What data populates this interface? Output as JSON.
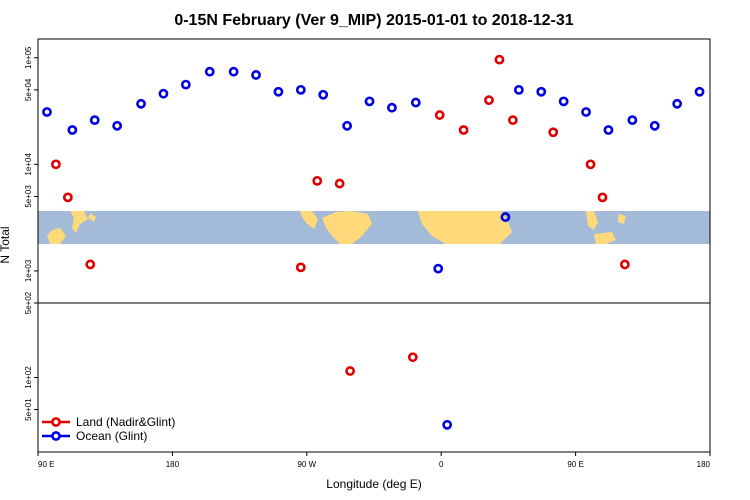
{
  "chart_data": {
    "type": "scatter",
    "title": "0-15N February (Ver 9_MIP)   2015-01-01 to 2018-12-31",
    "xlabel": "Longitude (deg E)",
    "ylabel": "N Total",
    "x_axis": {
      "range_deg_east": [
        90,
        540
      ],
      "ticks": [
        {
          "value": 90,
          "label": "90 E"
        },
        {
          "value": 180,
          "label": "180"
        },
        {
          "value": 270,
          "label": "90 W"
        },
        {
          "value": 360,
          "label": "0"
        },
        {
          "value": 450,
          "label": "90 E"
        },
        {
          "value": 540,
          "label": "180"
        }
      ]
    },
    "y_axis": {
      "scale": "log",
      "range": [
        20,
        150000
      ],
      "ticks": [
        {
          "value": 50,
          "label": "5e+01"
        },
        {
          "value": 100,
          "label": "1e+02"
        },
        {
          "value": 500,
          "label": "5e+02"
        },
        {
          "value": 1000,
          "label": "1e+03"
        },
        {
          "value": 5000,
          "label": "5e+03"
        },
        {
          "value": 10000,
          "label": "1e+04"
        },
        {
          "value": 50000,
          "label": "5e+04"
        },
        {
          "value": 100000,
          "label": "1e+05"
        }
      ]
    },
    "reference_line_y": 500,
    "map_band": {
      "present": true,
      "water_color": "#a3bbd9",
      "land_color": "#ffd97a"
    },
    "legend": {
      "position": "bottom-left"
    },
    "series": [
      {
        "name": "Land (Nadir&Glint)",
        "color": "#e00000",
        "points": [
          {
            "x": 102,
            "y": 10000
          },
          {
            "x": 110,
            "y": 4900
          },
          {
            "x": 125,
            "y": 1150
          },
          {
            "x": 266,
            "y": 1080
          },
          {
            "x": 277,
            "y": 7000
          },
          {
            "x": 292,
            "y": 6600
          },
          {
            "x": 299,
            "y": 115
          },
          {
            "x": 341,
            "y": 155
          },
          {
            "x": 359,
            "y": 29000
          },
          {
            "x": 375,
            "y": 21000
          },
          {
            "x": 392,
            "y": 40000
          },
          {
            "x": 399,
            "y": 96000
          },
          {
            "x": 408,
            "y": 26000
          },
          {
            "x": 435,
            "y": 20000
          },
          {
            "x": 460,
            "y": 10000
          },
          {
            "x": 468,
            "y": 4900
          },
          {
            "x": 483,
            "y": 1150
          }
        ]
      },
      {
        "name": "Ocean (Glint)",
        "color": "#0000e0",
        "points": [
          {
            "x": 96,
            "y": 31000
          },
          {
            "x": 113,
            "y": 21000
          },
          {
            "x": 128,
            "y": 26000
          },
          {
            "x": 143,
            "y": 23000
          },
          {
            "x": 159,
            "y": 37000
          },
          {
            "x": 174,
            "y": 46000
          },
          {
            "x": 189,
            "y": 56000
          },
          {
            "x": 205,
            "y": 74000
          },
          {
            "x": 221,
            "y": 74000
          },
          {
            "x": 236,
            "y": 69000
          },
          {
            "x": 251,
            "y": 48000
          },
          {
            "x": 266,
            "y": 50000
          },
          {
            "x": 281,
            "y": 45000
          },
          {
            "x": 297,
            "y": 23000
          },
          {
            "x": 312,
            "y": 39000
          },
          {
            "x": 327,
            "y": 34000
          },
          {
            "x": 343,
            "y": 38000
          },
          {
            "x": 358,
            "y": 1050
          },
          {
            "x": 364,
            "y": 36
          },
          {
            "x": 403,
            "y": 3200
          },
          {
            "x": 412,
            "y": 50000
          },
          {
            "x": 427,
            "y": 48000
          },
          {
            "x": 442,
            "y": 39000
          },
          {
            "x": 457,
            "y": 31000
          },
          {
            "x": 472,
            "y": 21000
          },
          {
            "x": 488,
            "y": 26000
          },
          {
            "x": 503,
            "y": 23000
          },
          {
            "x": 518,
            "y": 37000
          },
          {
            "x": 533,
            "y": 48000
          }
        ]
      }
    ]
  }
}
